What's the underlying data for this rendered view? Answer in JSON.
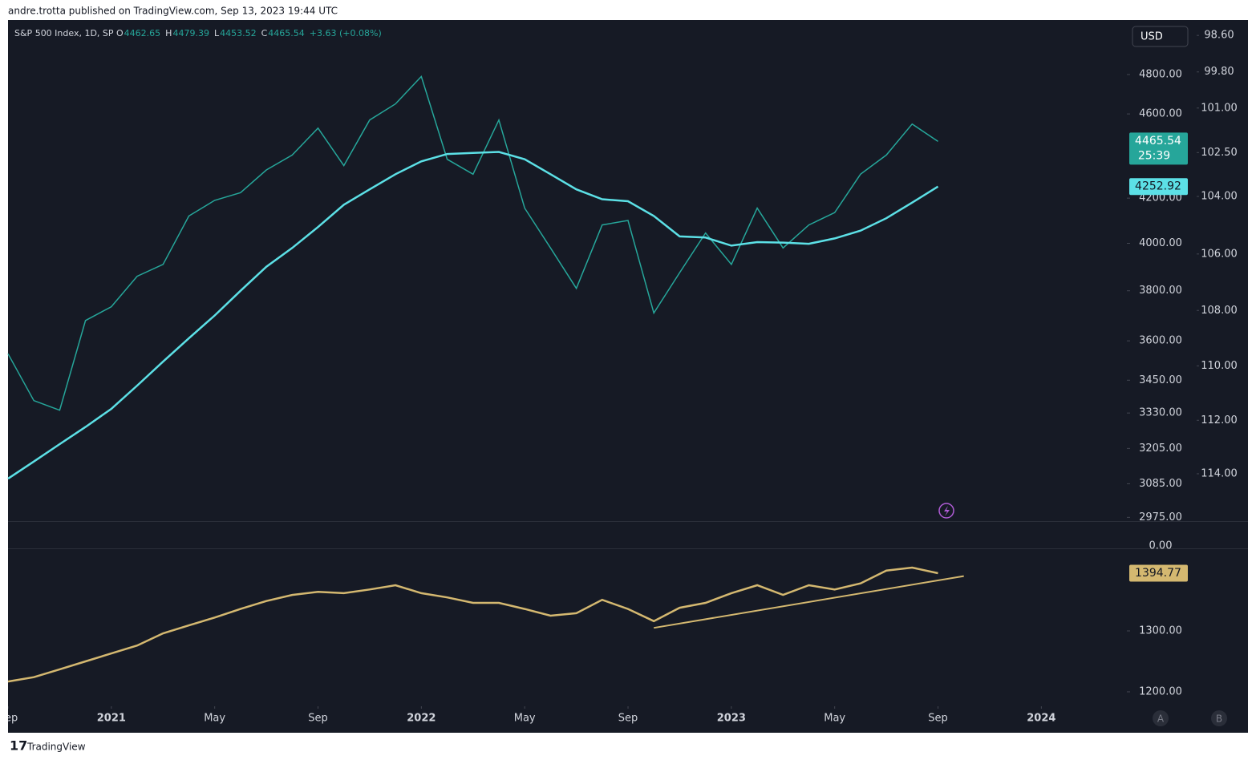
{
  "header": {
    "byline": "andre.trotta published on TradingView.com, Sep 13, 2023 19:44 UTC",
    "footer": "TradingView",
    "scale_buttons": [
      "A",
      "B"
    ]
  },
  "chart_data": [
    {
      "type": "line",
      "title": "S&P 500 Index, 1D, SP",
      "ohlc": [
        {
          "label": "O",
          "value": "4462.65"
        },
        {
          "label": "H",
          "value": "4479.39"
        },
        {
          "label": "L",
          "value": "4453.52"
        },
        {
          "label": "C",
          "value": "4465.54"
        }
      ],
      "change": "+3.63 (+0.08%)",
      "currency": "USD",
      "countdown": "25:39",
      "x": [
        "2020-09",
        "2020-10",
        "2020-11",
        "2020-12",
        "2021-01",
        "2021-02",
        "2021-03",
        "2021-04",
        "2021-05",
        "2021-06",
        "2021-07",
        "2021-08",
        "2021-09",
        "2021-10",
        "2021-11",
        "2021-12",
        "2022-01",
        "2022-02",
        "2022-03",
        "2022-04",
        "2022-05",
        "2022-06",
        "2022-07",
        "2022-08",
        "2022-09",
        "2022-10",
        "2022-11",
        "2022-12",
        "2023-01",
        "2023-02",
        "2023-03",
        "2023-04",
        "2023-05",
        "2023-06",
        "2023-07",
        "2023-08",
        "2023-09"
      ],
      "series": [
        {
          "color": "#26a69a",
          "values": [
            3550,
            3375,
            3340,
            3680,
            3735,
            3860,
            3910,
            4120,
            4190,
            4225,
            4330,
            4400,
            4530,
            4350,
            4570,
            4650,
            4790,
            4380,
            4310,
            4570,
            4155,
            3980,
            3810,
            4080,
            4100,
            3710,
            3875,
            4045,
            3910,
            4155,
            3980,
            4080,
            4135,
            4310,
            4400,
            4550,
            4465.54
          ]
        },
        {
          "color": "#5ce0e6",
          "values": [
            3102,
            3160,
            3220,
            3280,
            3345,
            3430,
            3520,
            3610,
            3700,
            3800,
            3900,
            3980,
            4071,
            4170,
            4240,
            4310,
            4370,
            4405,
            4410,
            4415,
            4380,
            4310,
            4240,
            4195,
            4186,
            4120,
            4030,
            4025,
            3990,
            4005,
            4003,
            3998,
            4021,
            4055,
            4110,
            4180,
            4252.92
          ]
        }
      ],
      "xlim": [
        "2020-09",
        "2024-04"
      ],
      "xticks": [
        {
          "value": "2020-09",
          "label": "Sep"
        },
        {
          "value": "2021-01",
          "label": "2021"
        },
        {
          "value": "2021-05",
          "label": "May"
        },
        {
          "value": "2021-09",
          "label": "Sep"
        },
        {
          "value": "2022-01",
          "label": "2022"
        },
        {
          "value": "2022-05",
          "label": "May"
        },
        {
          "value": "2022-09",
          "label": "Sep"
        },
        {
          "value": "2023-01",
          "label": "2023"
        },
        {
          "value": "2023-05",
          "label": "May"
        },
        {
          "value": "2023-09",
          "label": "Sep"
        },
        {
          "value": "2024-01",
          "label": "2024"
        }
      ],
      "ylim": [
        2963,
        5091
      ],
      "log_scale": true,
      "yticks": [
        {
          "value": 2975,
          "label": "2975.00"
        },
        {
          "value": 3085,
          "label": "3085.00"
        },
        {
          "value": 3205,
          "label": "3205.00"
        },
        {
          "value": 3330,
          "label": "3330.00"
        },
        {
          "value": 3450,
          "label": "3450.00"
        },
        {
          "value": 3600,
          "label": "3600.00"
        },
        {
          "value": 3800,
          "label": "3800.00"
        },
        {
          "value": 4000,
          "label": "4000.00"
        },
        {
          "value": 4200,
          "label": "4200.00"
        },
        {
          "value": 4600,
          "label": "4600.00"
        },
        {
          "value": 4800,
          "label": "4800.00"
        }
      ],
      "y2lim": [
        98.1,
        115.8
      ],
      "y2_inverted": true,
      "y2ticks": [
        {
          "value": 98.6,
          "label": "98.60"
        },
        {
          "value": 99.8,
          "label": "99.80"
        },
        {
          "value": 101,
          "label": "101.00"
        },
        {
          "value": 102.5,
          "label": "102.50"
        },
        {
          "value": 104,
          "label": "104.00"
        },
        {
          "value": 106,
          "label": "106.00"
        },
        {
          "value": 108,
          "label": "108.00"
        },
        {
          "value": 110,
          "label": "110.00"
        },
        {
          "value": 112,
          "label": "112.00"
        },
        {
          "value": 114,
          "label": "114.00"
        }
      ]
    },
    {
      "type": "line",
      "x": [
        "2020-09",
        "2020-10",
        "2020-11",
        "2020-12",
        "2021-01",
        "2021-02",
        "2021-03",
        "2021-04",
        "2021-05",
        "2021-06",
        "2021-07",
        "2021-08",
        "2021-09",
        "2021-10",
        "2021-11",
        "2021-12",
        "2022-01",
        "2022-02",
        "2022-03",
        "2022-04",
        "2022-05",
        "2022-06",
        "2022-07",
        "2022-08",
        "2022-09",
        "2022-10",
        "2022-11",
        "2022-12",
        "2023-01",
        "2023-02",
        "2023-03",
        "2023-04",
        "2023-05",
        "2023-06",
        "2023-07",
        "2023-08",
        "2023-09"
      ],
      "series": [
        {
          "color": "#d4b870",
          "values": [
            1217,
            1224,
            1237,
            1250,
            1263,
            1276,
            1296,
            1309,
            1322,
            1336,
            1349,
            1359,
            1364,
            1362,
            1368,
            1375,
            1362,
            1355,
            1346,
            1346,
            1336,
            1325,
            1329,
            1351,
            1336,
            1316,
            1338,
            1346,
            1362,
            1375,
            1359,
            1375,
            1368,
            1378,
            1399,
            1404,
            1394.77
          ]
        }
      ],
      "trendline": {
        "color": "#d4b870",
        "x": [
          "2022-10",
          "2023-10"
        ],
        "values": [
          1305,
          1390
        ]
      },
      "ylim": [
        1177.6,
        1434.2
      ],
      "yticks": [
        {
          "value": 1200,
          "label": "1200.00"
        },
        {
          "value": 1300,
          "label": "1300.00"
        }
      ],
      "top_label": {
        "value": 0,
        "label": "0.00"
      }
    }
  ]
}
